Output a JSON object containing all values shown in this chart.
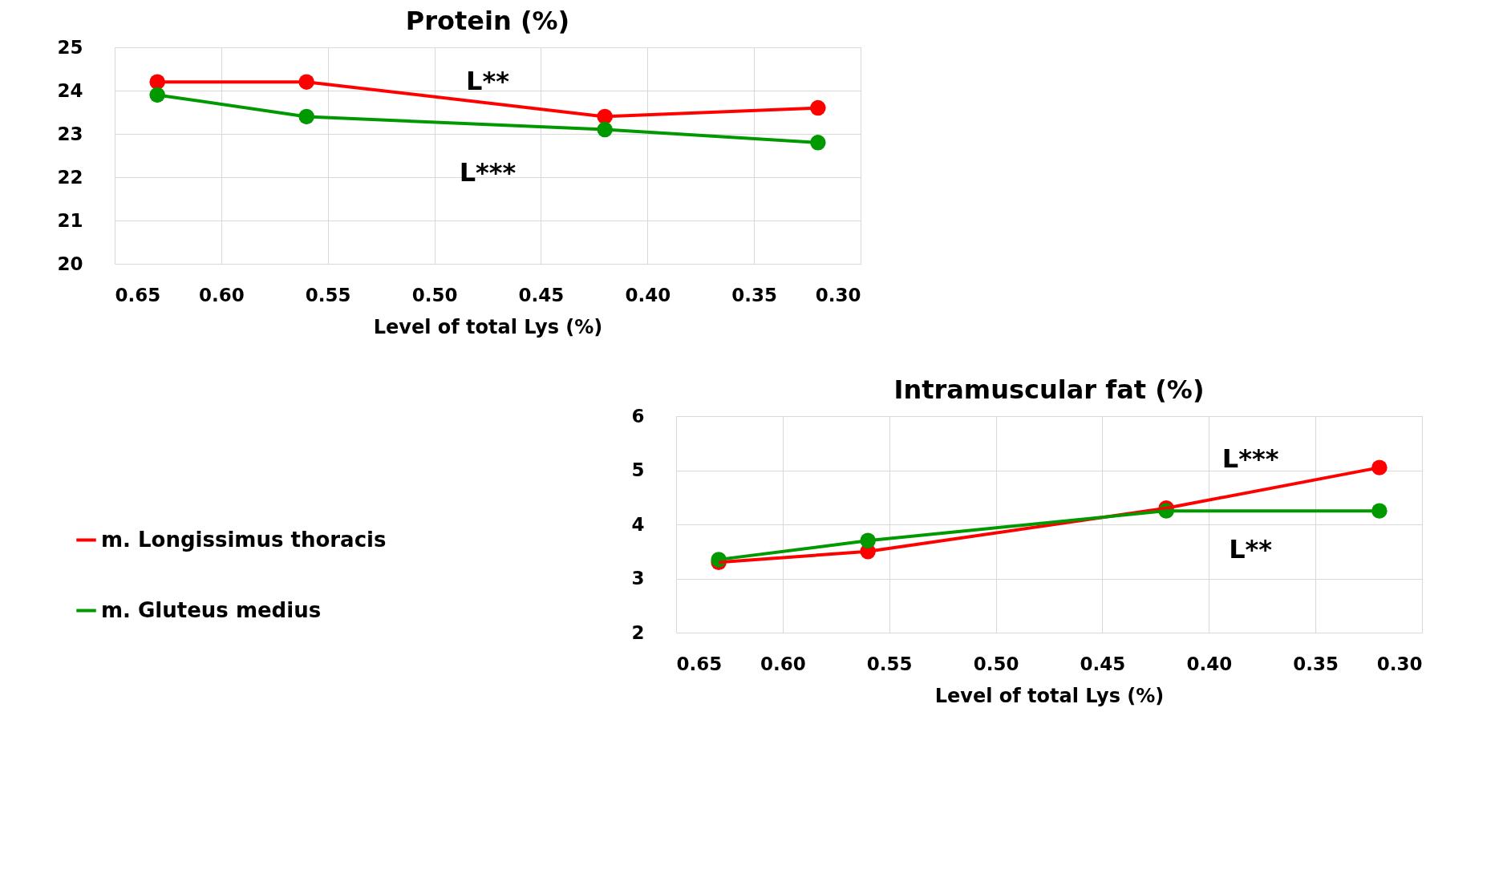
{
  "chart_data": [
    {
      "type": "line",
      "title": "Protein (%)",
      "xlabel": "Level of total Lys (%)",
      "x": [
        0.63,
        0.56,
        0.42,
        0.32
      ],
      "series": [
        {
          "name": "m. Longissimus thoracis",
          "color": "#ff0000",
          "values": [
            24.2,
            24.2,
            23.4,
            23.6
          ]
        },
        {
          "name": "m. Gluteus medius",
          "color": "#009900",
          "values": [
            23.9,
            23.4,
            23.1,
            22.8
          ]
        }
      ],
      "xlim": [
        0.65,
        0.3
      ],
      "xticks": [
        0.65,
        {
          "value": 0.6,
          "label": "0.60"
        },
        0.55,
        {
          "value": 0.5,
          "label": "0.50"
        },
        0.45,
        {
          "value": 0.4,
          "label": "0.40"
        },
        0.35,
        {
          "value": 0.3,
          "label": "0.30"
        }
      ],
      "ylim": [
        20,
        25
      ],
      "yticks": [
        20,
        21,
        22,
        23,
        24,
        25
      ],
      "grid": true,
      "legend": "bottom left",
      "marker": "circle",
      "line_style": "solid",
      "annotations": [
        "L**",
        "L***"
      ]
    },
    {
      "type": "line",
      "title": "Intramuscular fat (%)",
      "xlabel": "Level of total Lys (%)",
      "x": [
        0.63,
        0.56,
        0.42,
        0.32
      ],
      "series": [
        {
          "color": "#ff0000",
          "values": [
            3.3,
            3.5,
            4.3,
            5.05
          ]
        },
        {
          "color": "#009900",
          "values": [
            3.35,
            3.7,
            4.25,
            4.25
          ]
        }
      ],
      "xlim": [
        0.65,
        0.3
      ],
      "xticks": [
        0.65,
        {
          "value": 0.6,
          "label": "0.60"
        },
        0.55,
        {
          "value": 0.5,
          "label": "0.50"
        },
        0.45,
        {
          "value": 0.4,
          "label": "0.40"
        },
        0.35,
        {
          "value": 0.3,
          "label": "0.30"
        }
      ],
      "ylim": [
        2,
        6
      ],
      "yticks": [
        2,
        3,
        4,
        5,
        6
      ],
      "grid": true,
      "marker": "circle",
      "line_style": "solid",
      "annotations": [
        "L***",
        "L**"
      ]
    }
  ]
}
